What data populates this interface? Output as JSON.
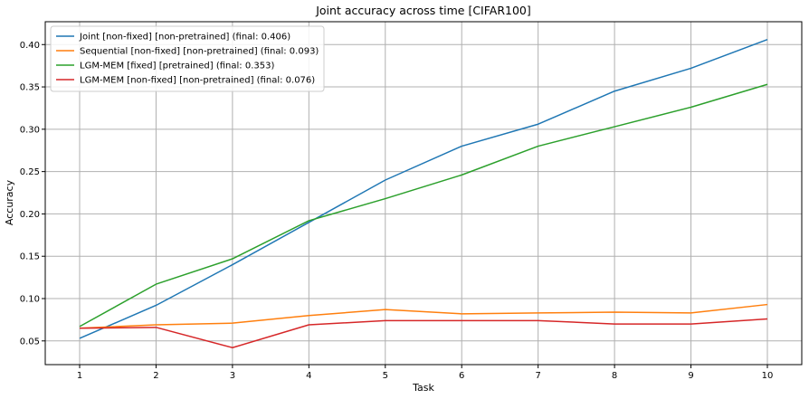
{
  "chart_data": {
    "type": "line",
    "title": "Joint accuracy across time [CIFAR100]",
    "xlabel": "Task",
    "ylabel": "Accuracy",
    "x": [
      1,
      2,
      3,
      4,
      5,
      6,
      7,
      8,
      9,
      10
    ],
    "xlim": [
      0.55,
      10.45
    ],
    "ylim": [
      0.022,
      0.427
    ],
    "yticks": [
      0.05,
      0.1,
      0.15,
      0.2,
      0.25,
      0.3,
      0.35,
      0.4
    ],
    "ytick_labels": [
      "0.05",
      "0.10",
      "0.15",
      "0.20",
      "0.25",
      "0.30",
      "0.35",
      "0.40"
    ],
    "xtick_labels": [
      "1",
      "2",
      "3",
      "4",
      "5",
      "6",
      "7",
      "8",
      "9",
      "10"
    ],
    "grid": true,
    "legend_position": "top-left",
    "series": [
      {
        "name": "Joint [non-fixed] [non-pretrained] (final:  0.406)",
        "color": "#1f77b4",
        "values": [
          0.053,
          0.092,
          0.14,
          0.19,
          0.24,
          0.28,
          0.306,
          0.345,
          0.372,
          0.406
        ]
      },
      {
        "name": "Sequential [non-fixed] [non-pretrained] (final:  0.093)",
        "color": "#ff7f0e",
        "values": [
          0.065,
          0.069,
          0.071,
          0.08,
          0.087,
          0.082,
          0.083,
          0.084,
          0.083,
          0.093
        ]
      },
      {
        "name": "LGM-MEM [fixed] [pretrained] (final:  0.353)",
        "color": "#2ca02c",
        "values": [
          0.067,
          0.117,
          0.147,
          0.192,
          0.218,
          0.246,
          0.28,
          0.303,
          0.326,
          0.353
        ]
      },
      {
        "name": "LGM-MEM [non-fixed] [non-pretrained] (final:  0.076)",
        "color": "#d62728",
        "values": [
          0.065,
          0.066,
          0.042,
          0.069,
          0.074,
          0.074,
          0.074,
          0.07,
          0.07,
          0.076
        ]
      }
    ]
  }
}
